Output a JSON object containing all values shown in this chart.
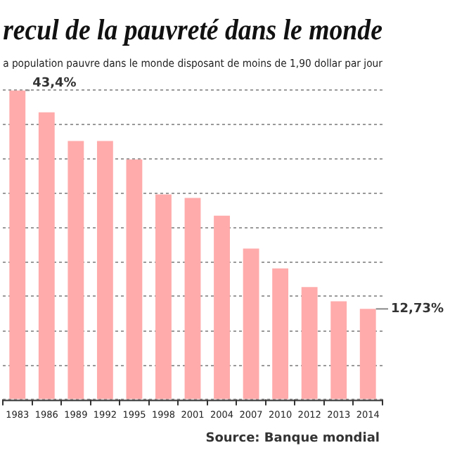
{
  "chart_data": {
    "type": "bar",
    "title": "recul de la pauvreté dans le monde",
    "subtitle": "a population pauvre dans le monde disposant de moins de 1,90 dollar par jour",
    "categories": [
      "1983",
      "1986",
      "1989",
      "1992",
      "1995",
      "1998",
      "2001",
      "2004",
      "2007",
      "2010",
      "2012",
      "2013",
      "2014"
    ],
    "values": [
      43.4,
      40.3,
      36.3,
      36.3,
      33.7,
      28.8,
      28.3,
      25.8,
      21.2,
      18.4,
      15.8,
      13.8,
      12.73
    ],
    "value_labels": [
      "43,4%",
      null,
      null,
      null,
      null,
      null,
      null,
      null,
      null,
      null,
      null,
      null,
      "12,73%"
    ],
    "color": "#ffabab",
    "ylim": [
      0,
      43.4
    ],
    "yticks": [
      {
        "value": 0,
        "label": null
      },
      {
        "value": 4.8,
        "label": null
      },
      {
        "value": 9.6,
        "label": null
      },
      {
        "value": 14.5,
        "label": null
      },
      {
        "value": 19.3,
        "label": null
      },
      {
        "value": 24.1,
        "label": null
      },
      {
        "value": 28.9,
        "label": null
      },
      {
        "value": 33.8,
        "label": null
      },
      {
        "value": 38.6,
        "label": null
      },
      {
        "value": 43.4,
        "label": null
      }
    ],
    "tick_labels": "x",
    "grid": "y",
    "legend": false,
    "annotations": [
      "Source: Banque mondial"
    ]
  }
}
